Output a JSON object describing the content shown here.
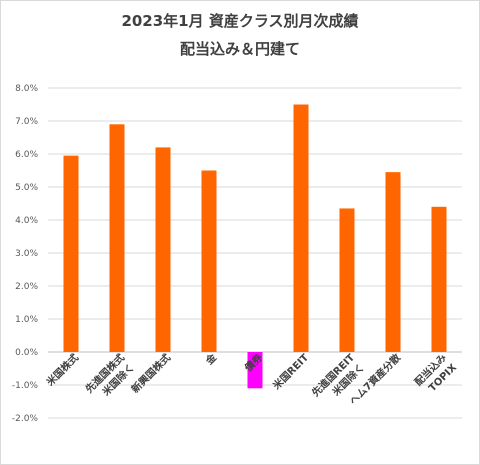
{
  "chart_data": {
    "type": "bar",
    "title": "2023年1月 資産クラス別月次成績",
    "subtitle": "配当込み＆円建て",
    "xlabel": "",
    "ylabel": "",
    "categories": [
      "米国株式",
      "先進国株式 米国除く",
      "新興国株式",
      "金",
      "債券",
      "米国REIT",
      "先進国REIT 米国除く",
      "ヘム7資産分散",
      "配当込み TOPIX"
    ],
    "values": [
      5.95,
      6.9,
      6.2,
      5.5,
      -1.1,
      7.5,
      4.35,
      5.45,
      4.4
    ],
    "ylim": [
      -2.0,
      8.0
    ],
    "yticks": [
      "-2.0%",
      "-1.0%",
      "0.0%",
      "1.0%",
      "2.0%",
      "3.0%",
      "4.0%",
      "5.0%",
      "6.0%",
      "7.0%",
      "8.0%"
    ],
    "ytick_values": [
      -2,
      -1,
      0,
      1,
      2,
      3,
      4,
      5,
      6,
      7,
      8
    ],
    "grid": true,
    "legend": "none",
    "colors": {
      "bar": "#ff6600",
      "highlight": "#ff00ff",
      "grid": "#d9d9d9",
      "axis": "#bfbfbf",
      "title": "#404040"
    },
    "highlight_index": 4
  }
}
